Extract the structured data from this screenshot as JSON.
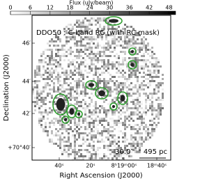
{
  "chart_data": {
    "type": "image",
    "title": "DDO50 : C-band RC (with RC mask)",
    "colorbar_label": "Flux (uJy/beam)",
    "clim": [
      0,
      50
    ],
    "colorbar_ticks": [
      0,
      6,
      12,
      18,
      24,
      30,
      36,
      42,
      48
    ],
    "x_label": "Right Ascension (J2000)",
    "y_label": "Declination (J2000)",
    "x_tick_labels": [
      "40ˢ",
      "20ˢ",
      "8ʰ19ᵐ00ˢ",
      "18ᵐ40ˢ"
    ],
    "y_tick_labels": [
      "46′",
      "44′",
      "42′",
      "+70°40′"
    ],
    "scale_bar": "30.0″ = 495 pc",
    "contour_color": "#2e9e2e"
  }
}
